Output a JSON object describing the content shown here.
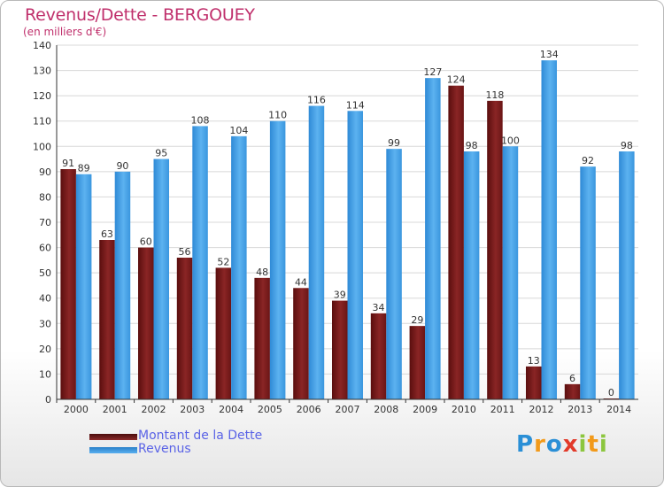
{
  "chart_data": {
    "type": "bar",
    "title": "Revenus/Dette - BERGOUEY",
    "subtitle": "(en milliers d'€)",
    "categories": [
      "2000",
      "2001",
      "2002",
      "2003",
      "2004",
      "2005",
      "2006",
      "2007",
      "2008",
      "2009",
      "2010",
      "2011",
      "2012",
      "2013",
      "2014"
    ],
    "series": [
      {
        "name": "Montant de la Dette",
        "color": "#7a1a1a",
        "values": [
          91,
          63,
          60,
          56,
          52,
          48,
          44,
          39,
          34,
          29,
          124,
          118,
          13,
          6,
          0
        ]
      },
      {
        "name": "Revenus",
        "color": "#3d9be2",
        "values": [
          89,
          90,
          95,
          108,
          104,
          110,
          116,
          114,
          99,
          127,
          98,
          100,
          134,
          92,
          98
        ]
      }
    ],
    "ylim": [
      0,
      140
    ],
    "ytick_step": 10,
    "grid": true,
    "legend_position": "bottom-left"
  },
  "legend": {
    "debt_label": "Montant de la Dette",
    "revenue_label": "Revenus"
  },
  "brand": {
    "letters": [
      "P",
      "r",
      "o",
      "x",
      "i",
      "t",
      "i"
    ],
    "colors": [
      "#2a8fd6",
      "#f29a1a",
      "#2a8fd6",
      "#e23a2a",
      "#8cc63e",
      "#f29a1a",
      "#8cc63e"
    ]
  }
}
